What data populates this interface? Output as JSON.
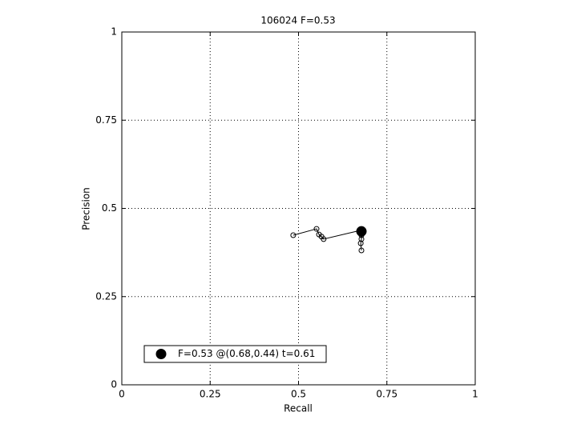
{
  "chart_data": {
    "type": "line",
    "title": "106024 F=0.53",
    "x_label": "Recall",
    "y_label": "Precision",
    "xlim": [
      0,
      1
    ],
    "ylim": [
      0,
      1
    ],
    "xticks": [
      0,
      0.25,
      0.5,
      0.75,
      1
    ],
    "yticks": [
      0,
      0.25,
      0.5,
      0.75,
      1
    ],
    "grid": true,
    "legend_position": "lower left",
    "series": [
      {
        "color": "#000000",
        "marker": "open-circle",
        "x": [
          0.485,
          0.551,
          0.558,
          0.565,
          0.571,
          0.676,
          0.678,
          0.678,
          0.676,
          0.678
        ],
        "values": [
          0.424,
          0.442,
          0.426,
          0.42,
          0.413,
          0.438,
          0.424,
          0.413,
          0.401,
          0.381
        ]
      },
      {
        "name": "F=0.53 @(0.68,0.44) t=0.61",
        "color": "#000000",
        "marker": "filled-circle",
        "x": [
          0.678
        ],
        "values": [
          0.435
        ]
      }
    ]
  }
}
